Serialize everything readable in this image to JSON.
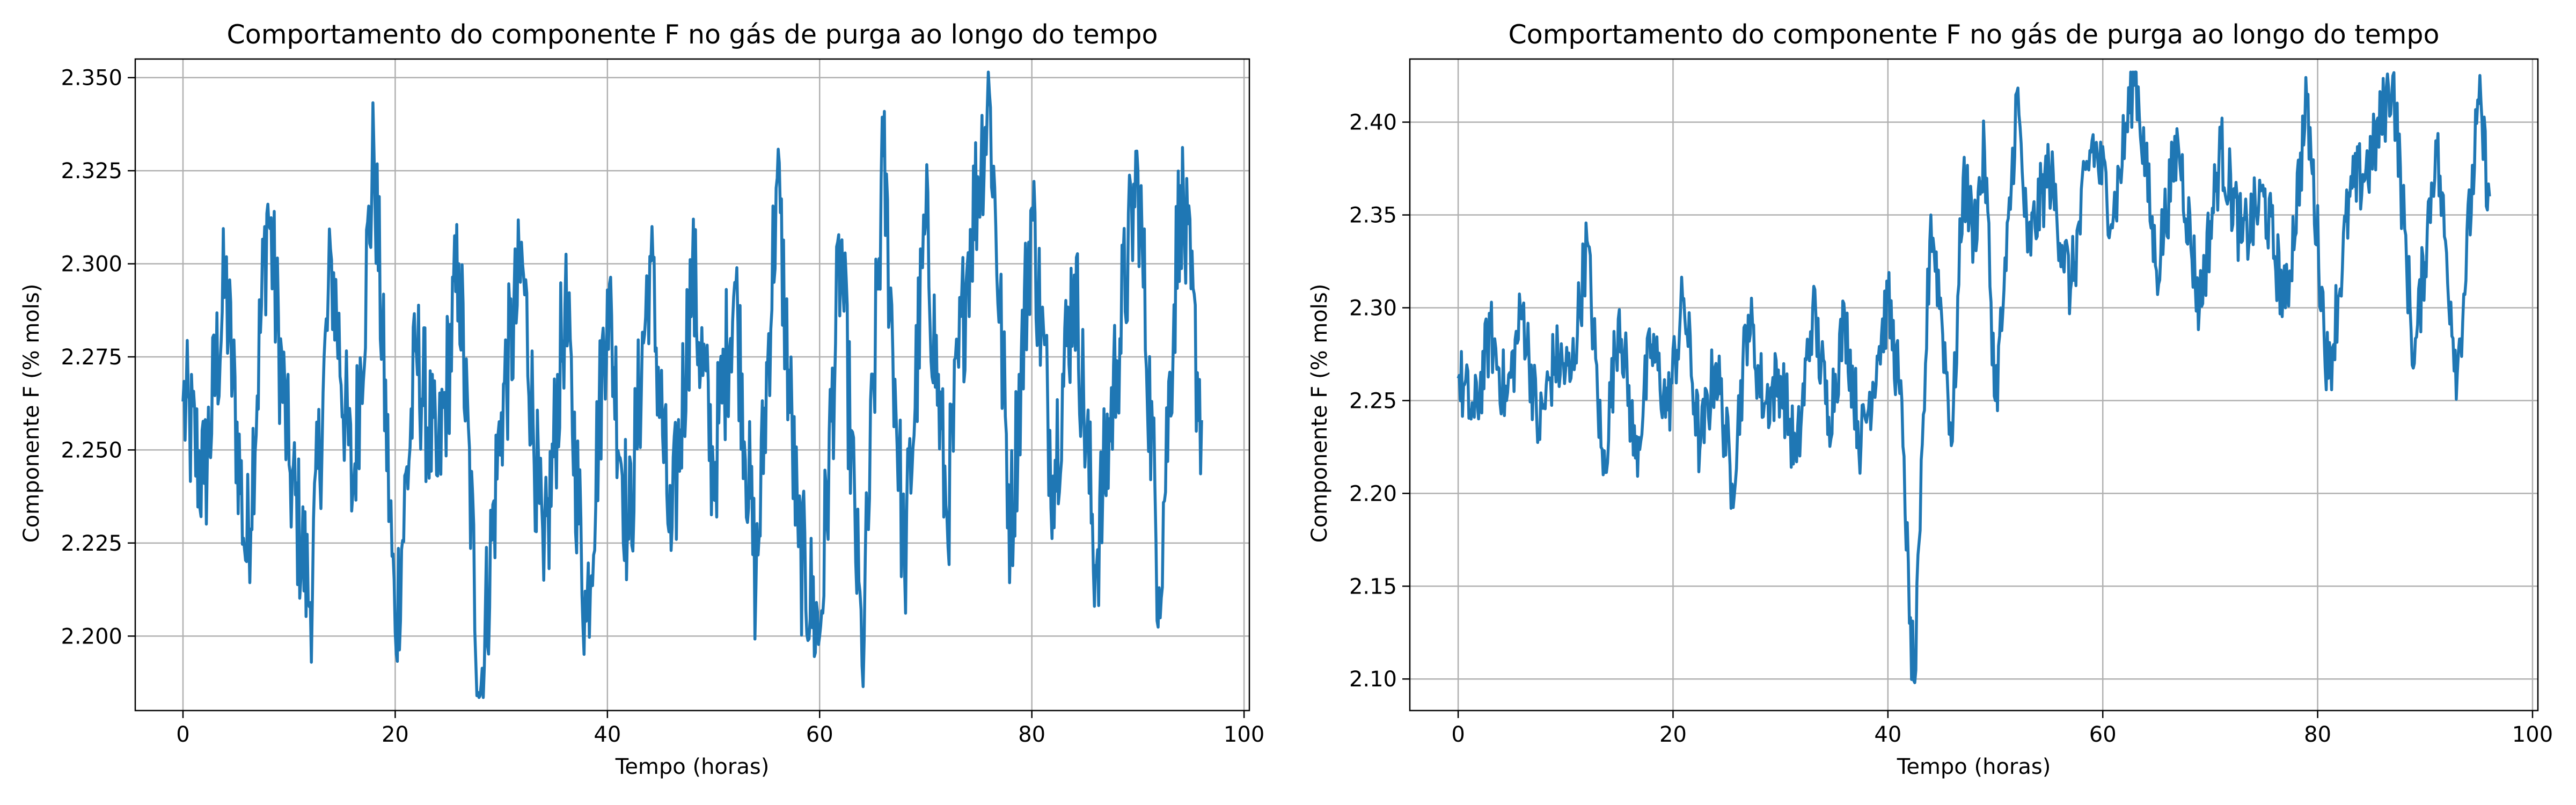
{
  "chart_data": [
    {
      "type": "line",
      "title": "Comportamento do componente F no gás de purga ao longo do tempo",
      "xlabel": "Tempo (horas)",
      "ylabel": "Componente F (% mols)",
      "xlim": [
        -4.5,
        100.5
      ],
      "ylim": [
        2.18,
        2.355
      ],
      "xticks": [
        0,
        20,
        40,
        60,
        80,
        100
      ],
      "xtick_labels": [
        "0",
        "20",
        "40",
        "60",
        "80",
        "100"
      ],
      "yticks": [
        2.2,
        2.225,
        2.25,
        2.275,
        2.3,
        2.325,
        2.35
      ],
      "ytick_labels": [
        "2.200",
        "2.225",
        "2.250",
        "2.275",
        "2.300",
        "2.325",
        "2.350"
      ],
      "grid": true,
      "color": "#1f77b4",
      "series": [
        {
          "x": [
            0,
            2,
            4,
            6,
            8,
            10,
            12,
            14,
            16,
            18,
            20,
            22,
            24,
            26,
            28,
            30,
            32,
            34,
            36,
            38,
            40,
            42,
            44,
            46,
            48,
            50,
            52,
            54,
            56,
            58,
            60,
            62,
            64,
            66,
            68,
            70,
            72,
            74,
            76,
            78,
            80,
            82,
            84,
            86,
            88,
            90,
            92,
            94,
            96
          ],
          "y": [
            2.263,
            2.241,
            2.295,
            2.22,
            2.316,
            2.246,
            2.209,
            2.301,
            2.238,
            2.33,
            2.201,
            2.276,
            2.243,
            2.3,
            2.184,
            2.26,
            2.3,
            2.215,
            2.289,
            2.204,
            2.293,
            2.226,
            2.302,
            2.223,
            2.298,
            2.244,
            2.295,
            2.213,
            2.323,
            2.224,
            2.2,
            2.305,
            2.192,
            2.329,
            2.218,
            2.311,
            2.232,
            2.303,
            2.346,
            2.228,
            2.315,
            2.243,
            2.297,
            2.219,
            2.274,
            2.325,
            2.213,
            2.321,
            2.258
          ]
        }
      ]
    },
    {
      "type": "line",
      "title": "Comportamento do componente F no gás de purga ao longo do tempo",
      "xlabel": "Tempo (horas)",
      "ylabel": "Componente F (% mols)",
      "xlim": [
        -4.5,
        100.5
      ],
      "ylim": [
        2.083,
        2.434
      ],
      "xticks": [
        0,
        20,
        40,
        60,
        80,
        100
      ],
      "xtick_labels": [
        "0",
        "20",
        "40",
        "60",
        "80",
        "100"
      ],
      "yticks": [
        2.1,
        2.15,
        2.2,
        2.25,
        2.3,
        2.35,
        2.4
      ],
      "ytick_labels": [
        "2.10",
        "2.15",
        "2.20",
        "2.25",
        "2.30",
        "2.35",
        "2.40"
      ],
      "grid": true,
      "color": "#1f77b4",
      "series": [
        {
          "x": [
            0,
            1.5,
            3,
            4.5,
            6,
            7.5,
            9,
            10.5,
            12,
            13.5,
            15,
            16.5,
            18,
            19.5,
            21,
            22.5,
            24,
            25.5,
            27,
            28.5,
            30,
            31.5,
            33,
            34.5,
            36,
            37.5,
            39,
            40,
            41,
            41.5,
            42,
            42.5,
            43,
            43.5,
            44,
            45,
            46,
            47,
            48,
            49,
            50,
            51,
            52,
            53,
            55,
            57,
            59,
            61,
            63,
            65,
            67,
            69,
            71,
            73,
            75,
            77,
            79,
            81,
            83,
            85,
            87,
            89,
            91,
            93,
            95,
            96
          ],
          "y": [
            2.262,
            2.241,
            2.287,
            2.25,
            2.3,
            2.234,
            2.273,
            2.262,
            2.336,
            2.21,
            2.299,
            2.219,
            2.28,
            2.245,
            2.305,
            2.224,
            2.27,
            2.205,
            2.296,
            2.248,
            2.263,
            2.217,
            2.3,
            2.241,
            2.294,
            2.226,
            2.274,
            2.303,
            2.26,
            2.22,
            2.13,
            2.098,
            2.18,
            2.27,
            2.35,
            2.296,
            2.228,
            2.37,
            2.34,
            2.384,
            2.25,
            2.32,
            2.416,
            2.33,
            2.375,
            2.31,
            2.39,
            2.35,
            2.43,
            2.32,
            2.39,
            2.3,
            2.386,
            2.336,
            2.36,
            2.3,
            2.41,
            2.262,
            2.36,
            2.38,
            2.425,
            2.27,
            2.39,
            2.265,
            2.41,
            2.36
          ]
        }
      ]
    }
  ]
}
